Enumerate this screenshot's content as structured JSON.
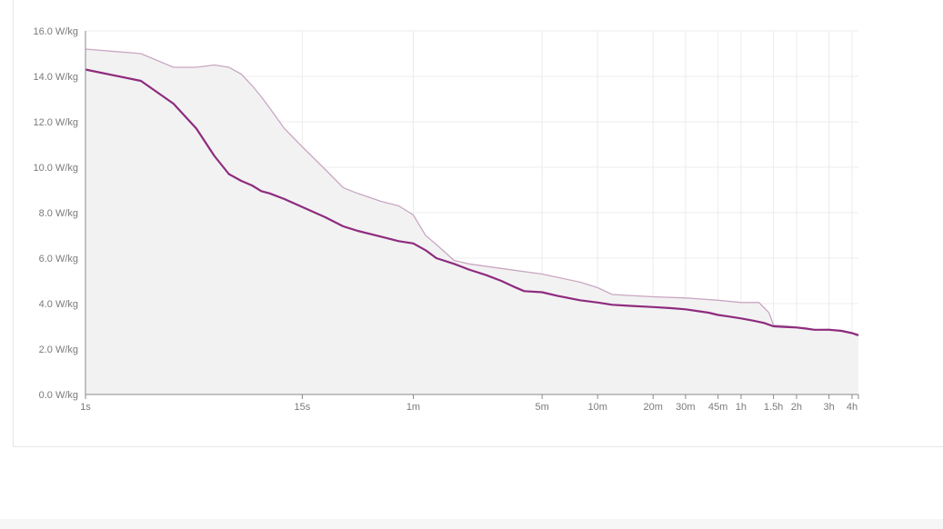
{
  "chart_data": {
    "type": "line",
    "title": "",
    "xlabel": "",
    "ylabel": "",
    "x_scale": "log",
    "ylim": [
      0,
      16
    ],
    "y_ticks": [
      {
        "value": 0,
        "label": "0.0 W/kg"
      },
      {
        "value": 2,
        "label": "2.0 W/kg"
      },
      {
        "value": 4,
        "label": "4.0 W/kg"
      },
      {
        "value": 6,
        "label": "6.0 W/kg"
      },
      {
        "value": 8,
        "label": "8.0 W/kg"
      },
      {
        "value": 10,
        "label": "10.0 W/kg"
      },
      {
        "value": 12,
        "label": "12.0 W/kg"
      },
      {
        "value": 14,
        "label": "14.0 W/kg"
      },
      {
        "value": 16,
        "label": "16.0 W/kg"
      }
    ],
    "x_ticks": [
      {
        "label": "1s"
      },
      {
        "label": "15s"
      },
      {
        "label": "1m"
      },
      {
        "label": "5m"
      },
      {
        "label": "10m"
      },
      {
        "label": "20m"
      },
      {
        "label": "30m"
      },
      {
        "label": "45m"
      },
      {
        "label": "1h"
      },
      {
        "label": "1.5h"
      },
      {
        "label": "2h"
      },
      {
        "label": "3h"
      },
      {
        "label": "4h"
      }
    ],
    "grid": true,
    "colors": {
      "current": "#8e2b7e",
      "best": "#c9a7c2",
      "best_fill": "#f2f2f2",
      "grid": "#ececec",
      "axis": "#8a8a8a"
    },
    "series": [
      {
        "role": "current",
        "points": [
          {
            "x": "1s",
            "y": 14.3
          },
          {
            "x": "2s",
            "y": 13.8
          },
          {
            "x": "3s",
            "y": 12.8
          },
          {
            "x": "4s",
            "y": 11.7
          },
          {
            "x": "5s",
            "y": 10.5
          },
          {
            "x": "6s",
            "y": 9.7
          },
          {
            "x": "7s",
            "y": 9.4
          },
          {
            "x": "8s",
            "y": 9.2
          },
          {
            "x": "9s",
            "y": 8.95
          },
          {
            "x": "10s",
            "y": 8.85
          },
          {
            "x": "12s",
            "y": 8.6
          },
          {
            "x": "15s",
            "y": 8.25
          },
          {
            "x": "20s",
            "y": 7.8
          },
          {
            "x": "25s",
            "y": 7.4
          },
          {
            "x": "30s",
            "y": 7.2
          },
          {
            "x": "40s",
            "y": 6.95
          },
          {
            "x": "50s",
            "y": 6.75
          },
          {
            "x": "1m",
            "y": 6.65
          },
          {
            "x": "1m10s",
            "y": 6.35
          },
          {
            "x": "1m20s",
            "y": 6.0
          },
          {
            "x": "1m40s",
            "y": 5.75
          },
          {
            "x": "2m",
            "y": 5.5
          },
          {
            "x": "2m30s",
            "y": 5.25
          },
          {
            "x": "3m",
            "y": 5.0
          },
          {
            "x": "3m30s",
            "y": 4.75
          },
          {
            "x": "4m",
            "y": 4.55
          },
          {
            "x": "5m",
            "y": 4.5
          },
          {
            "x": "6m",
            "y": 4.35
          },
          {
            "x": "8m",
            "y": 4.15
          },
          {
            "x": "10m",
            "y": 4.05
          },
          {
            "x": "12m",
            "y": 3.95
          },
          {
            "x": "15m",
            "y": 3.9
          },
          {
            "x": "20m",
            "y": 3.85
          },
          {
            "x": "25m",
            "y": 3.8
          },
          {
            "x": "30m",
            "y": 3.75
          },
          {
            "x": "40m",
            "y": 3.6
          },
          {
            "x": "45m",
            "y": 3.5
          },
          {
            "x": "50m",
            "y": 3.45
          },
          {
            "x": "1h",
            "y": 3.35
          },
          {
            "x": "1h10m",
            "y": 3.25
          },
          {
            "x": "1h20m",
            "y": 3.15
          },
          {
            "x": "1h30m",
            "y": 3.0
          },
          {
            "x": "1h45m",
            "y": 2.97
          },
          {
            "x": "2h",
            "y": 2.95
          },
          {
            "x": "2h15m",
            "y": 2.9
          },
          {
            "x": "2h30m",
            "y": 2.85
          },
          {
            "x": "3h",
            "y": 2.85
          },
          {
            "x": "3h30m",
            "y": 2.8
          },
          {
            "x": "4h",
            "y": 2.7
          },
          {
            "x": "4h20m",
            "y": 2.6
          }
        ]
      },
      {
        "role": "best",
        "points": [
          {
            "x": "1s",
            "y": 15.2
          },
          {
            "x": "2s",
            "y": 15.0
          },
          {
            "x": "3s",
            "y": 14.4
          },
          {
            "x": "4s",
            "y": 14.4
          },
          {
            "x": "5s",
            "y": 14.5
          },
          {
            "x": "6s",
            "y": 14.4
          },
          {
            "x": "7s",
            "y": 14.1
          },
          {
            "x": "8s",
            "y": 13.6
          },
          {
            "x": "9s",
            "y": 13.1
          },
          {
            "x": "10s",
            "y": 12.6
          },
          {
            "x": "12s",
            "y": 11.7
          },
          {
            "x": "15s",
            "y": 10.9
          },
          {
            "x": "20s",
            "y": 9.9
          },
          {
            "x": "25s",
            "y": 9.1
          },
          {
            "x": "30s",
            "y": 8.85
          },
          {
            "x": "40s",
            "y": 8.5
          },
          {
            "x": "50s",
            "y": 8.3
          },
          {
            "x": "1m",
            "y": 7.9
          },
          {
            "x": "1m10s",
            "y": 7.0
          },
          {
            "x": "1m20s",
            "y": 6.6
          },
          {
            "x": "1m40s",
            "y": 5.9
          },
          {
            "x": "2m",
            "y": 5.75
          },
          {
            "x": "3m",
            "y": 5.55
          },
          {
            "x": "5m",
            "y": 5.3
          },
          {
            "x": "8m",
            "y": 4.95
          },
          {
            "x": "10m",
            "y": 4.7
          },
          {
            "x": "12m",
            "y": 4.4
          },
          {
            "x": "20m",
            "y": 4.3
          },
          {
            "x": "30m",
            "y": 4.25
          },
          {
            "x": "45m",
            "y": 4.15
          },
          {
            "x": "1h",
            "y": 4.05
          },
          {
            "x": "1h15m",
            "y": 4.05
          },
          {
            "x": "1h25m",
            "y": 3.6
          },
          {
            "x": "1h30m",
            "y": 3.05
          },
          {
            "x": "1h45m",
            "y": 3.02
          },
          {
            "x": "2h",
            "y": 2.97
          },
          {
            "x": "2h15m",
            "y": 2.92
          },
          {
            "x": "2h30m",
            "y": 2.85
          },
          {
            "x": "3h",
            "y": 2.87
          },
          {
            "x": "3h30m",
            "y": 2.82
          },
          {
            "x": "4h",
            "y": 2.72
          },
          {
            "x": "4h20m",
            "y": 2.65
          }
        ]
      }
    ]
  }
}
